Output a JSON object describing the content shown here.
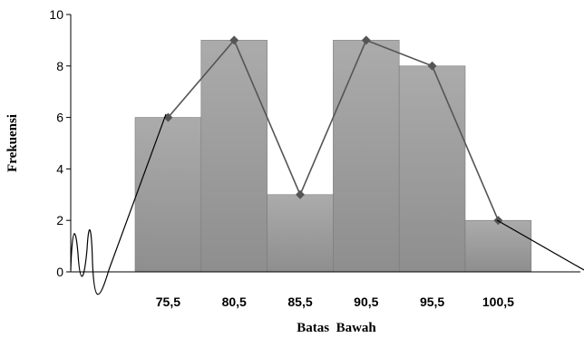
{
  "chart_data": {
    "type": "bar",
    "title": "",
    "xlabel": "Batas  Bawah",
    "ylabel": "Frekuensi",
    "ylim": [
      0,
      10
    ],
    "yticks": [
      "0",
      "2",
      "4",
      "6",
      "8",
      "10"
    ],
    "categories": [
      "75,5",
      "80,5",
      "85,5",
      "90,5",
      "95,5",
      "100,5"
    ],
    "values": [
      6,
      9,
      3,
      9,
      8,
      2
    ],
    "polygon": {
      "type": "line",
      "values": [
        6,
        9,
        3,
        9,
        8,
        2
      ],
      "marker": "diamond"
    },
    "grid": false,
    "legend": "none",
    "colors": {
      "bar": "#a6a6a6",
      "bar_dark": "#8a8a8a",
      "line": "#555555",
      "marker": "#555555"
    }
  }
}
